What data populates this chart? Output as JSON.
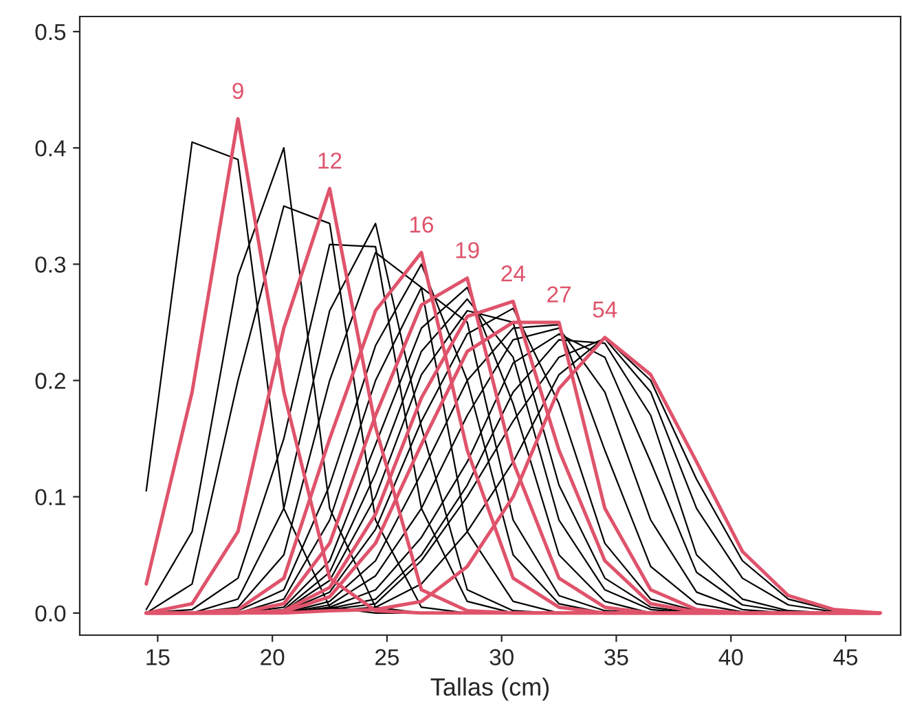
{
  "chart_data": {
    "type": "line",
    "xlabel": "Tallas (cm)",
    "x": [
      14.5,
      16.5,
      18.5,
      20.5,
      22.5,
      24.5,
      26.5,
      28.5,
      30.5,
      32.5,
      34.5,
      36.5,
      38.5,
      40.5,
      42.5,
      44.5,
      46.5
    ],
    "xlim": [
      11.6,
      47.4
    ],
    "xticks": [
      15,
      20,
      25,
      30,
      35,
      40,
      45
    ],
    "ylim": [
      -0.019,
      0.513
    ],
    "yticks": [
      {
        "value": 0,
        "label": "0.0"
      },
      0.1,
      0.2,
      0.3,
      0.4,
      0.5
    ],
    "grid": false,
    "legend": false,
    "marker": "none",
    "line_style": "solid",
    "series": [
      {
        "color": "#000000",
        "values": [
          0.105,
          0.405,
          0.39,
          0.09,
          0.005,
          0,
          0,
          0,
          0,
          0,
          0,
          0,
          0,
          0,
          0,
          0,
          0
        ]
      },
      {
        "color": "#000000",
        "values": [
          0.003,
          0.07,
          0.29,
          0.4,
          0.09,
          0.005,
          0,
          0,
          0,
          0,
          0,
          0,
          0,
          0,
          0,
          0,
          0
        ]
      },
      {
        "color": "#000000",
        "values": [
          0,
          0.025,
          0.2,
          0.35,
          0.335,
          0.08,
          0.005,
          0,
          0,
          0,
          0,
          0,
          0,
          0,
          0,
          0,
          0
        ]
      },
      {
        "color": "#000000",
        "values": [
          0,
          0.003,
          0.03,
          0.15,
          0.317,
          0.315,
          0.09,
          0.01,
          0,
          0,
          0,
          0,
          0,
          0,
          0,
          0,
          0
        ]
      },
      {
        "color": "#000000",
        "values": [
          0,
          0,
          0.012,
          0.09,
          0.26,
          0.335,
          0.16,
          0.02,
          0.002,
          0,
          0,
          0,
          0,
          0,
          0,
          0,
          0
        ]
      },
      {
        "color": "#000000",
        "values": [
          0,
          0,
          0.005,
          0.05,
          0.2,
          0.31,
          0.28,
          0.07,
          0.01,
          0,
          0,
          0,
          0,
          0,
          0,
          0,
          0
        ]
      },
      {
        "color": "#000000",
        "values": [
          0,
          0,
          0.002,
          0.02,
          0.11,
          0.23,
          0.3,
          0.2,
          0.05,
          0.008,
          0,
          0,
          0,
          0,
          0,
          0,
          0
        ]
      },
      {
        "color": "#000000",
        "values": [
          0,
          0,
          0,
          0.012,
          0.08,
          0.2,
          0.28,
          0.25,
          0.08,
          0.015,
          0.002,
          0,
          0,
          0,
          0,
          0,
          0
        ]
      },
      {
        "color": "#000000",
        "values": [
          0,
          0,
          0,
          0.005,
          0.045,
          0.145,
          0.245,
          0.28,
          0.18,
          0.05,
          0.01,
          0,
          0,
          0,
          0,
          0,
          0
        ]
      },
      {
        "color": "#000000",
        "values": [
          0,
          0,
          0,
          0.003,
          0.035,
          0.12,
          0.225,
          0.27,
          0.22,
          0.08,
          0.02,
          0.003,
          0,
          0,
          0,
          0,
          0
        ]
      },
      {
        "color": "#000000",
        "values": [
          0,
          0,
          0,
          0.002,
          0.028,
          0.1,
          0.205,
          0.26,
          0.25,
          0.11,
          0.03,
          0.005,
          0,
          0,
          0,
          0,
          0
        ]
      },
      {
        "color": "#000000",
        "values": [
          0,
          0,
          0,
          0.001,
          0.018,
          0.072,
          0.165,
          0.24,
          0.262,
          0.18,
          0.06,
          0.012,
          0.002,
          0,
          0,
          0,
          0
        ]
      },
      {
        "color": "#000000",
        "values": [
          0,
          0,
          0,
          0,
          0.01,
          0.045,
          0.12,
          0.2,
          0.245,
          0.248,
          0.14,
          0.04,
          0.008,
          0.001,
          0,
          0,
          0
        ]
      },
      {
        "color": "#000000",
        "values": [
          0,
          0,
          0,
          0,
          0.007,
          0.032,
          0.09,
          0.17,
          0.235,
          0.245,
          0.19,
          0.08,
          0.018,
          0.003,
          0,
          0,
          0
        ]
      },
      {
        "color": "#000000",
        "values": [
          0,
          0,
          0,
          0,
          0.005,
          0.02,
          0.065,
          0.13,
          0.215,
          0.24,
          0.22,
          0.13,
          0.035,
          0.007,
          0.001,
          0,
          0
        ]
      },
      {
        "color": "#000000",
        "values": [
          0,
          0,
          0,
          0,
          0.004,
          0.012,
          0.05,
          0.11,
          0.19,
          0.235,
          0.232,
          0.17,
          0.05,
          0.012,
          0.002,
          0,
          0
        ]
      },
      {
        "color": "#000000",
        "values": [
          0,
          0,
          0,
          0,
          0.003,
          0.008,
          0.045,
          0.1,
          0.165,
          0.22,
          0.236,
          0.19,
          0.09,
          0.03,
          0.007,
          0.001,
          0
        ]
      },
      {
        "color": "#000000",
        "values": [
          0,
          0,
          0,
          0,
          0.002,
          0.005,
          0.025,
          0.07,
          0.13,
          0.205,
          0.237,
          0.2,
          0.115,
          0.045,
          0.012,
          0.002,
          0
        ]
      },
      {
        "color": "#df536b",
        "values": [
          0.025,
          0.19,
          0.425,
          0.19,
          0.03,
          0.002,
          0,
          0,
          0,
          0,
          0,
          0,
          0,
          0,
          0,
          0,
          0
        ]
      },
      {
        "color": "#df536b",
        "values": [
          0,
          0.008,
          0.07,
          0.245,
          0.365,
          0.16,
          0.02,
          0.002,
          0,
          0,
          0,
          0,
          0,
          0,
          0,
          0,
          0
        ]
      },
      {
        "color": "#df536b",
        "values": [
          0,
          0,
          0.003,
          0.03,
          0.15,
          0.26,
          0.31,
          0.14,
          0.03,
          0.005,
          0,
          0,
          0,
          0,
          0,
          0,
          0
        ]
      },
      {
        "color": "#df536b",
        "values": [
          0,
          0,
          0,
          0.008,
          0.06,
          0.17,
          0.265,
          0.288,
          0.13,
          0.03,
          0.005,
          0,
          0,
          0,
          0,
          0,
          0
        ]
      },
      {
        "color": "#df536b",
        "values": [
          0,
          0,
          0,
          0.002,
          0.022,
          0.085,
          0.185,
          0.255,
          0.268,
          0.14,
          0.045,
          0.008,
          0.001,
          0,
          0,
          0,
          0
        ]
      },
      {
        "color": "#df536b",
        "values": [
          0,
          0,
          0,
          0.001,
          0.014,
          0.06,
          0.145,
          0.225,
          0.25,
          0.25,
          0.09,
          0.02,
          0.003,
          0,
          0,
          0,
          0
        ]
      },
      {
        "color": "#df536b",
        "values": [
          0,
          0,
          0,
          0,
          0.002,
          0.003,
          0.01,
          0.04,
          0.1,
          0.193,
          0.237,
          0.205,
          0.13,
          0.053,
          0.015,
          0.003,
          0
        ]
      }
    ],
    "annotations": [
      {
        "text": "9",
        "x": 18.5,
        "y": 0.425
      },
      {
        "text": "12",
        "x": 22.5,
        "y": 0.365
      },
      {
        "text": "16",
        "x": 26.5,
        "y": 0.31
      },
      {
        "text": "19",
        "x": 28.5,
        "y": 0.288
      },
      {
        "text": "24",
        "x": 30.5,
        "y": 0.268
      },
      {
        "text": "27",
        "x": 32.5,
        "y": 0.25
      },
      {
        "text": "54",
        "x": 34.5,
        "y": 0.237
      }
    ]
  }
}
